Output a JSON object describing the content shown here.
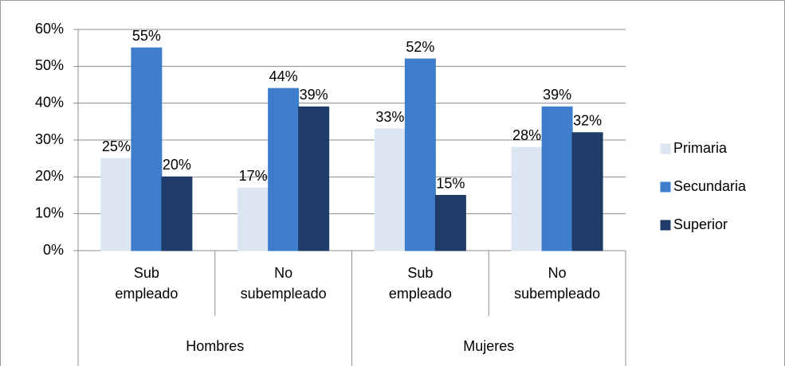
{
  "chart_data": {
    "type": "bar",
    "categories": [
      "Sub empleado",
      "No subempleado",
      "Sub empleado",
      "No subempleado"
    ],
    "groups": [
      "Hombres",
      "Mujeres"
    ],
    "series": [
      {
        "name": "Primaria",
        "color": "#dce6f2",
        "values": [
          25,
          17,
          33,
          28
        ],
        "value_labels": [
          "25%",
          "17%",
          "33%",
          "28%"
        ]
      },
      {
        "name": "Secundaria",
        "color": "#3d7dcc",
        "values": [
          55,
          44,
          52,
          39
        ],
        "value_labels": [
          "55%",
          "44%",
          "52%",
          "39%"
        ]
      },
      {
        "name": "Superior",
        "color": "#1f3c68",
        "values": [
          20,
          39,
          15,
          32
        ],
        "value_labels": [
          "20%",
          "39%",
          "15%",
          "32%"
        ]
      }
    ],
    "ylim": [
      0,
      60
    ],
    "yticks": [
      {
        "value": 0,
        "label": "0%"
      },
      {
        "value": 10,
        "label": "10%"
      },
      {
        "value": 20,
        "label": "20%"
      },
      {
        "value": 30,
        "label": "30%"
      },
      {
        "value": 40,
        "label": "40%"
      },
      {
        "value": 50,
        "label": "50%"
      },
      {
        "value": 60,
        "label": "60%"
      }
    ],
    "grid": true,
    "legend": "right"
  }
}
